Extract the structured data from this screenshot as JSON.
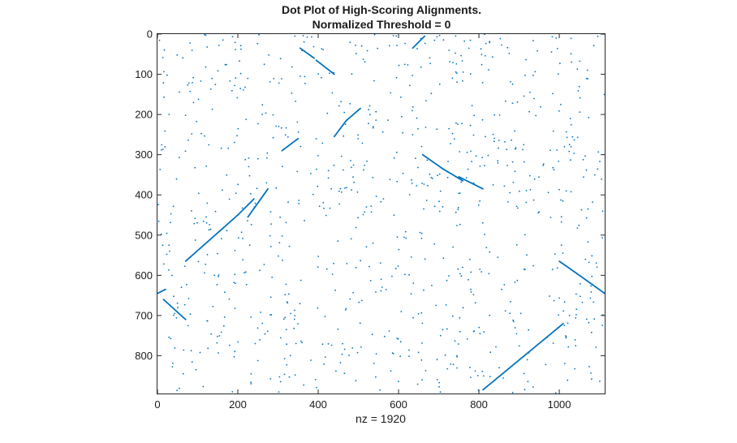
{
  "chart_data": {
    "type": "scatter",
    "title": "Dot Plot of High-Scoring Alignments.",
    "subtitle": "Normalized Threshold = 0",
    "xlabel": "nz = 1920",
    "ylabel": "",
    "xlim": [
      0,
      1113
    ],
    "ylim": [
      0,
      894
    ],
    "y_reversed": true,
    "grid": false,
    "x_ticks": [
      "0",
      "200",
      "400",
      "600",
      "800",
      "1000"
    ],
    "x_tick_values": [
      0,
      200,
      400,
      600,
      800,
      1000
    ],
    "y_ticks": [
      "0",
      "100",
      "200",
      "300",
      "400",
      "500",
      "600",
      "700",
      "800"
    ],
    "y_tick_values": [
      0,
      100,
      200,
      300,
      400,
      500,
      600,
      700,
      800
    ],
    "marker_color": "#0072bd",
    "nz": 1920,
    "diagonal_segments": [
      {
        "x0": 70,
        "y0": 565,
        "x1": 200,
        "y1": 450
      },
      {
        "x0": 200,
        "y0": 450,
        "x1": 240,
        "y1": 410
      },
      {
        "x0": 225,
        "y0": 455,
        "x1": 275,
        "y1": 385
      },
      {
        "x0": 310,
        "y0": 290,
        "x1": 350,
        "y1": 260
      },
      {
        "x0": 355,
        "y0": 35,
        "x1": 390,
        "y1": 60
      },
      {
        "x0": 395,
        "y0": 65,
        "x1": 440,
        "y1": 100
      },
      {
        "x0": 440,
        "y0": 255,
        "x1": 470,
        "y1": 215
      },
      {
        "x0": 470,
        "y0": 215,
        "x1": 505,
        "y1": 185
      },
      {
        "x0": 635,
        "y0": 35,
        "x1": 665,
        "y1": 5
      },
      {
        "x0": 660,
        "y0": 300,
        "x1": 710,
        "y1": 335
      },
      {
        "x0": 710,
        "y0": 335,
        "x1": 760,
        "y1": 365
      },
      {
        "x0": 750,
        "y0": 355,
        "x1": 810,
        "y1": 385
      },
      {
        "x0": 0,
        "y0": 645,
        "x1": 20,
        "y1": 635
      },
      {
        "x0": 15,
        "y0": 660,
        "x1": 70,
        "y1": 710
      },
      {
        "x0": 810,
        "y0": 885,
        "x1": 1010,
        "y1": 720
      },
      {
        "x0": 1000,
        "y0": 565,
        "x1": 1050,
        "y1": 600
      },
      {
        "x0": 1050,
        "y0": 600,
        "x1": 1113,
        "y1": 645
      }
    ]
  }
}
